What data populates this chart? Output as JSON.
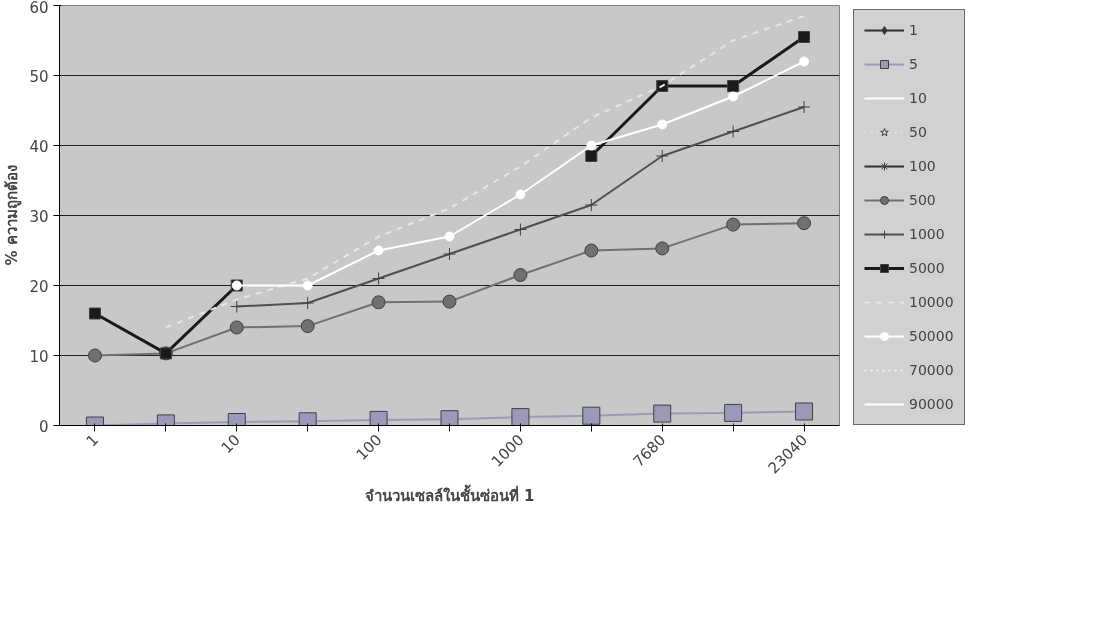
{
  "chart_data": {
    "type": "line",
    "xlabel": "จำนวนเซลล์ในชั้นซ่อนที่ 1",
    "ylabel": "% ความถูกต้อง",
    "categories": [
      "1",
      null,
      "10",
      null,
      "100",
      null,
      "1000",
      null,
      "7680",
      null,
      "23040"
    ],
    "ylim": [
      0,
      60
    ],
    "yticks": [
      0,
      10,
      20,
      30,
      40,
      50,
      60
    ],
    "grid": "y",
    "legend": "right",
    "series": [
      {
        "name": "1",
        "color": "#303030",
        "marker": "diamond",
        "line_style": "solid",
        "values": [
          null,
          null,
          null,
          null,
          null,
          null,
          null,
          null,
          null,
          null,
          null
        ]
      },
      {
        "name": "5",
        "color": "#9a9ab8",
        "marker": "square",
        "line_style": "solid",
        "values": [
          0,
          0.3,
          0.5,
          0.6,
          0.8,
          0.9,
          1.2,
          1.4,
          1.7,
          1.8,
          2.0
        ]
      },
      {
        "name": "10",
        "color": "#ffffff",
        "marker": "none",
        "line_style": "solid",
        "values": [
          null,
          null,
          null,
          null,
          null,
          null,
          null,
          null,
          null,
          null,
          null
        ]
      },
      {
        "name": "50",
        "color": "#e0e0e0",
        "marker": "star",
        "line_style": "dotted",
        "values": [
          null,
          null,
          null,
          null,
          null,
          null,
          null,
          null,
          null,
          null,
          null
        ]
      },
      {
        "name": "100",
        "color": "#303030",
        "marker": "asterisk",
        "line_style": "solid",
        "values": [
          null,
          null,
          null,
          null,
          null,
          null,
          null,
          null,
          null,
          null,
          null
        ]
      },
      {
        "name": "500",
        "color": "#707070",
        "marker": "circle",
        "line_style": "solid",
        "values": [
          10,
          10.3,
          14,
          14.2,
          17.6,
          17.7,
          21.5,
          25,
          25.3,
          28.7,
          28.9
        ]
      },
      {
        "name": "1000",
        "color": "#505050",
        "marker": "cross",
        "line_style": "solid",
        "values": [
          null,
          null,
          17,
          17.5,
          21,
          24.5,
          28,
          31.5,
          38.5,
          42,
          45.5
        ]
      },
      {
        "name": "5000",
        "color": "#1a1a1a",
        "marker": "square",
        "line_style": "solid",
        "values": [
          16,
          10.3,
          20,
          null,
          null,
          null,
          null,
          38.5,
          48.5,
          48.5,
          55.5
        ]
      },
      {
        "name": "10000",
        "color": "#e6e6e6",
        "marker": "none",
        "line_style": "dashed",
        "values": [
          null,
          14,
          18,
          21,
          27,
          31,
          37,
          44,
          48.5,
          55,
          58.5
        ]
      },
      {
        "name": "50000",
        "color": "#ffffff",
        "marker": "circle",
        "line_style": "solid",
        "values": [
          null,
          null,
          20,
          20,
          25,
          27,
          33,
          40,
          43,
          47,
          52
        ]
      },
      {
        "name": "70000",
        "color": "#f4f4f4",
        "marker": "none",
        "line_style": "dotted",
        "values": [
          null,
          null,
          null,
          null,
          null,
          null,
          null,
          null,
          null,
          null,
          null
        ]
      },
      {
        "name": "90000",
        "color": "#ffffff",
        "marker": "none",
        "line_style": "solid",
        "values": [
          null,
          null,
          null,
          null,
          null,
          null,
          null,
          null,
          null,
          null,
          null
        ]
      }
    ]
  }
}
